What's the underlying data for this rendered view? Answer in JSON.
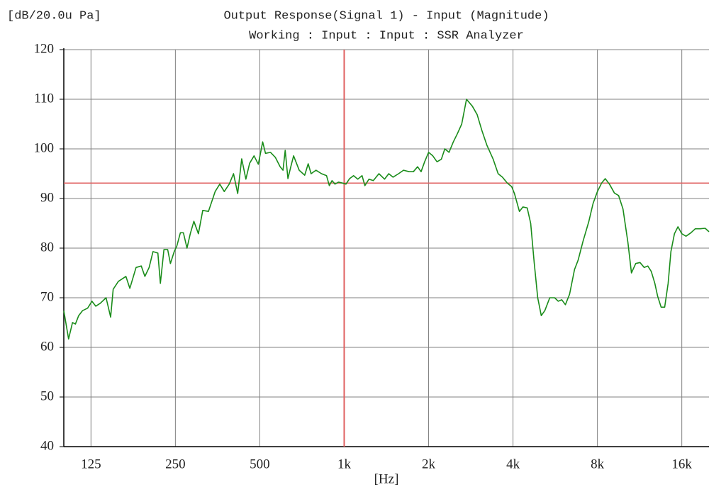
{
  "chart_data": {
    "type": "line",
    "title": "Output Response(Signal 1) - Input (Magnitude)",
    "subtitle": "Working : Input : Input : SSR Analyzer",
    "y_label": "[dB/20.0u Pa]",
    "x_label": "[Hz]",
    "xscale": "log",
    "xlim": [
      100,
      20000
    ],
    "ylim": [
      40,
      120
    ],
    "xticks": [
      125,
      250,
      500,
      {
        "value": 1000,
        "label": "1k"
      },
      {
        "value": 2000,
        "label": "2k"
      },
      {
        "value": 4000,
        "label": "4k"
      },
      {
        "value": 8000,
        "label": "8k"
      },
      {
        "value": 16000,
        "label": "16k"
      }
    ],
    "yticks": [
      40,
      50,
      60,
      70,
      80,
      90,
      100,
      110,
      120
    ],
    "grid": true,
    "grid_color": "#808080",
    "cursor": {
      "x": 1000,
      "y": 93.1,
      "color": "#e06060"
    },
    "x": [
      100,
      104,
      107.4,
      110,
      113,
      116.6,
      121.6,
      126,
      130,
      135,
      141.5,
      146.9,
      150,
      156.5,
      166.5,
      172,
      181,
      188.9,
      194.6,
      201.5,
      208,
      216.5,
      221,
      227.6,
      234.7,
      240,
      247.6,
      252.9,
      260.5,
      267,
      275,
      282.5,
      291,
      302,
      313,
      328,
      346.5,
      360,
      373.5,
      389,
      403,
      417,
      431,
      446,
      460,
      477,
      494,
      512,
      524,
      546,
      568,
      591,
      605,
      616,
      630,
      645,
      660,
      691,
      723,
      744,
      762,
      793,
      830,
      865,
      885,
      905,
      927,
      954,
      988,
      1015,
      1045,
      1080,
      1118,
      1158,
      1185,
      1226,
      1270,
      1330,
      1393,
      1442,
      1493,
      1563,
      1628,
      1705,
      1765,
      1827,
      1880,
      1936,
      2000,
      2070,
      2143,
      2220,
      2285,
      2365,
      2450,
      2535,
      2625,
      2730,
      2865,
      2980,
      3102,
      3230,
      3400,
      3540,
      3667,
      3818,
      3956,
      4048,
      4216,
      4340,
      4495,
      4625,
      4760,
      4900,
      5045,
      5194,
      5410,
      5630,
      5800,
      5970,
      6150,
      6365,
      6630,
      6830,
      7110,
      7450,
      7720,
      8000,
      8280,
      8530,
      8830,
      9200,
      9520,
      9870,
      10280,
      10580,
      10960,
      11350,
      11750,
      12100,
      12450,
      12820,
      13120,
      13500,
      13900,
      14300,
      14630,
      15060,
      15500,
      16000,
      16560,
      17250,
      17870,
      18620,
      19380,
      20000
    ],
    "series": [
      {
        "name": "Output Response",
        "color": "#1a8c1a",
        "values": [
          67.4,
          61.7,
          65,
          64.7,
          66.4,
          67.4,
          67.9,
          69.3,
          68.3,
          68.9,
          70,
          66.1,
          71.7,
          73.3,
          74.3,
          71.9,
          76.1,
          76.4,
          74.3,
          76.1,
          79.3,
          79,
          72.9,
          79.7,
          79.7,
          76.9,
          79.3,
          80.4,
          83.1,
          83.1,
          80,
          82.9,
          85.4,
          82.9,
          87.6,
          87.4,
          91.4,
          92.9,
          91.4,
          92.9,
          95,
          91,
          98,
          93.9,
          97.1,
          98.6,
          96.9,
          101.4,
          99.1,
          99.3,
          98.3,
          96.4,
          95.7,
          99.7,
          94,
          96.4,
          98.6,
          95.7,
          94.7,
          97,
          95,
          95.7,
          95,
          94.6,
          92.6,
          93.6,
          92.9,
          93.3,
          93.1,
          92.9,
          94,
          94.6,
          93.9,
          94.6,
          92.6,
          93.9,
          93.6,
          95,
          93.9,
          95,
          94.3,
          95,
          95.7,
          95.4,
          95.4,
          96.4,
          95.4,
          97.4,
          99.3,
          98.6,
          97.4,
          97.9,
          100,
          99.3,
          101.4,
          103.1,
          105,
          110,
          108.6,
          106.9,
          103.6,
          100.7,
          97.9,
          95,
          94.3,
          93.1,
          92.4,
          91,
          87.4,
          88.3,
          88.1,
          85,
          77.1,
          70,
          66.4,
          67.4,
          70,
          70,
          69.3,
          69.6,
          68.6,
          70.7,
          75.7,
          77.6,
          81.4,
          85.3,
          89,
          91.4,
          93.1,
          94,
          92.9,
          91.1,
          90.6,
          87.9,
          81.1,
          75,
          76.9,
          77.1,
          76.1,
          76.4,
          75.3,
          72.9,
          70.3,
          68.1,
          68.1,
          72.9,
          79.3,
          82.9,
          84.3,
          82.9,
          82.4,
          83.1,
          83.9,
          83.9,
          84,
          83.3
        ]
      }
    ]
  }
}
